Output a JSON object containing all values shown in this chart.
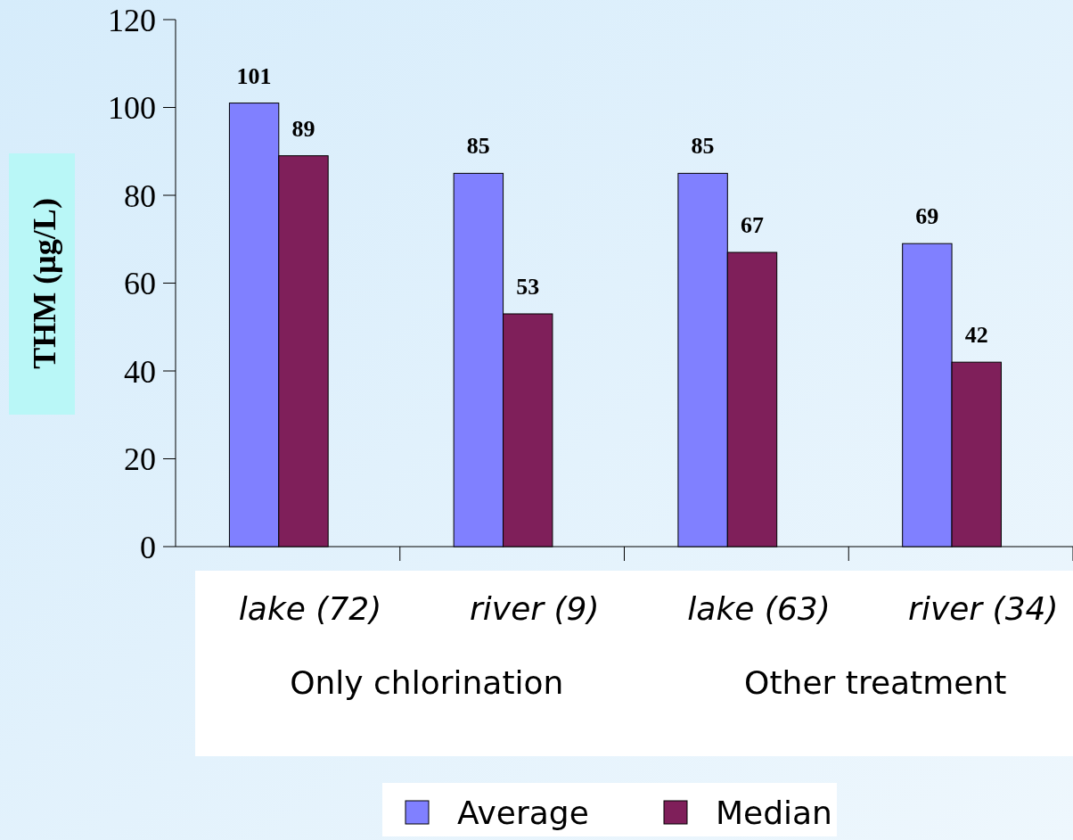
{
  "chart_data": {
    "type": "bar",
    "ylabel": "THM (µg/L)",
    "categories": [
      "lake (72)",
      "river (9)",
      "lake (63)",
      "river (34)"
    ],
    "series": [
      {
        "name": "Average",
        "color": "#8080ff",
        "values": [
          101,
          85,
          85,
          69
        ]
      },
      {
        "name": "Median",
        "color": "#7f1f5a",
        "values": [
          89,
          53,
          67,
          42
        ]
      }
    ],
    "ylim": [
      0,
      120
    ],
    "yticks": [
      0,
      20,
      40,
      60,
      80,
      100,
      120
    ],
    "annotations": [
      "Only chlorination",
      "Other treatment"
    ],
    "data_labels": true,
    "legend": "bottom",
    "grid": false
  }
}
